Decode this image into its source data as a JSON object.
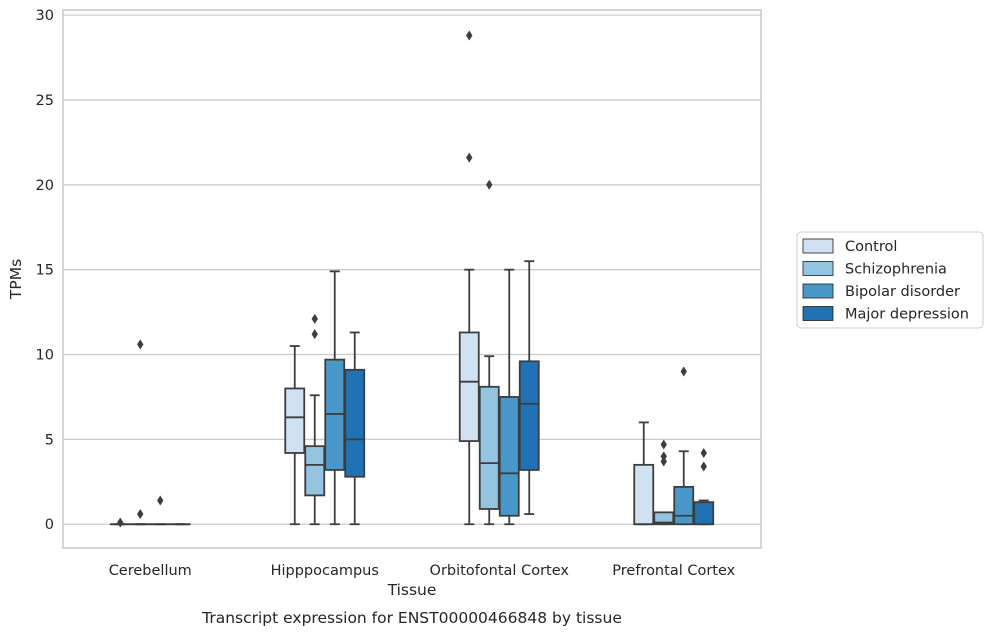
{
  "chart_data": {
    "type": "box",
    "caption": "Transcript expression for ENST00000466848 by tissue",
    "xlabel": "Tissue",
    "ylabel": "TPMs",
    "ylim": [
      -1.4,
      30.3
    ],
    "yticks": [
      0,
      5,
      10,
      15,
      20,
      25,
      30
    ],
    "grid": "horizontal",
    "legend_position": "right",
    "categories": [
      "Cerebellum",
      "Hipppocampus",
      "Orbitofontal Cortex",
      "Prefrontal Cortex"
    ],
    "series": [
      {
        "name": "Control",
        "color": "#d0e1f2",
        "boxes": [
          {
            "whislo": 0,
            "q1": 0,
            "med": 0,
            "q3": 0,
            "whishi": 0,
            "fliers": [
              0.1
            ]
          },
          {
            "whislo": 0,
            "q1": 4.2,
            "med": 6.3,
            "q3": 8.0,
            "whishi": 10.5,
            "fliers": []
          },
          {
            "whislo": 0,
            "q1": 4.9,
            "med": 8.4,
            "q3": 11.3,
            "whishi": 15.0,
            "fliers": [
              21.6,
              28.8
            ]
          },
          {
            "whislo": 0,
            "q1": 0,
            "med": 0,
            "q3": 3.5,
            "whishi": 6.0,
            "fliers": []
          }
        ]
      },
      {
        "name": "Schizophrenia",
        "color": "#94c4df",
        "boxes": [
          {
            "whislo": 0,
            "q1": 0,
            "med": 0,
            "q3": 0,
            "whishi": 0,
            "fliers": [
              0.6,
              10.6
            ]
          },
          {
            "whislo": 0,
            "q1": 1.7,
            "med": 3.5,
            "q3": 4.6,
            "whishi": 7.6,
            "fliers": [
              11.2,
              12.1
            ]
          },
          {
            "whislo": 0,
            "q1": 0.9,
            "med": 3.6,
            "q3": 8.1,
            "whishi": 9.9,
            "fliers": [
              20.0
            ]
          },
          {
            "whislo": 0,
            "q1": 0,
            "med": 0.1,
            "q3": 0.7,
            "whishi": 0.7,
            "fliers": [
              3.7,
              4.0,
              4.7
            ]
          }
        ]
      },
      {
        "name": "Bipolar disorder",
        "color": "#4a98c9",
        "boxes": [
          {
            "whislo": 0,
            "q1": 0,
            "med": 0,
            "q3": 0,
            "whishi": 0,
            "fliers": [
              1.4
            ]
          },
          {
            "whislo": 0,
            "q1": 3.2,
            "med": 6.5,
            "q3": 9.7,
            "whishi": 14.9,
            "fliers": []
          },
          {
            "whislo": 0,
            "q1": 0.5,
            "med": 3.0,
            "q3": 7.5,
            "whishi": 15.0,
            "fliers": []
          },
          {
            "whislo": 0,
            "q1": 0,
            "med": 0.5,
            "q3": 2.2,
            "whishi": 4.3,
            "fliers": [
              9.0
            ]
          }
        ]
      },
      {
        "name": "Major depression",
        "color": "#2171b5",
        "boxes": [
          {
            "whislo": 0,
            "q1": 0,
            "med": 0,
            "q3": 0,
            "whishi": 0,
            "fliers": []
          },
          {
            "whislo": 0,
            "q1": 2.8,
            "med": 5.0,
            "q3": 9.1,
            "whishi": 11.3,
            "fliers": []
          },
          {
            "whislo": 0.6,
            "q1": 3.2,
            "med": 7.1,
            "q3": 9.6,
            "whishi": 15.5,
            "fliers": []
          },
          {
            "whislo": 0,
            "q1": 0,
            "med": 0,
            "q3": 1.3,
            "whishi": 1.4,
            "fliers": [
              3.4,
              4.2
            ]
          }
        ]
      }
    ]
  }
}
